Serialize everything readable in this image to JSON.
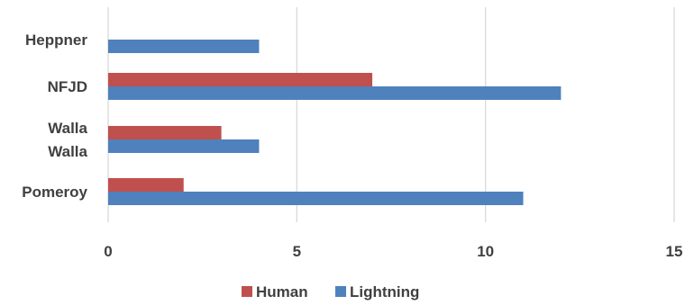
{
  "chart_data": {
    "type": "bar",
    "orientation": "horizontal",
    "categories": [
      [
        "Heppner"
      ],
      [
        "NFJD"
      ],
      [
        "Walla",
        "Walla"
      ],
      [
        "Pomeroy"
      ]
    ],
    "series": [
      {
        "name": "Human",
        "color": "#c0504d",
        "values": [
          0,
          7,
          3,
          2
        ]
      },
      {
        "name": "Lightning",
        "color": "#4f81bd",
        "values": [
          4,
          12,
          4,
          11
        ]
      }
    ],
    "xlim": [
      0,
      15
    ],
    "xticks": [
      "0",
      "5",
      "10",
      "15"
    ],
    "grid": true,
    "legend": "bottom"
  }
}
